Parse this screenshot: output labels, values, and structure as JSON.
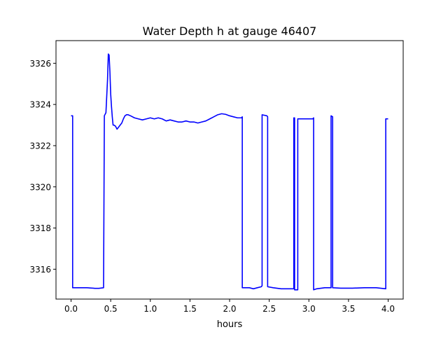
{
  "chart_data": {
    "type": "line",
    "title": "Water Depth h at gauge 46407",
    "xlabel": "hours",
    "ylabel": "",
    "xlim": [
      -0.19,
      4.19
    ],
    "ylim": [
      3314.55,
      3327.1
    ],
    "grid": false,
    "x_ticks": [
      0.0,
      0.5,
      1.0,
      1.5,
      2.0,
      2.5,
      3.0,
      3.5,
      4.0
    ],
    "x_tick_labels": [
      "0.0",
      "0.5",
      "1.0",
      "1.5",
      "2.0",
      "2.5",
      "3.0",
      "3.5",
      "4.0"
    ],
    "y_ticks": [
      3316,
      3318,
      3320,
      3322,
      3324,
      3326
    ],
    "y_tick_labels": [
      "3316",
      "3318",
      "3320",
      "3322",
      "3324",
      "3326"
    ],
    "series": [
      {
        "color": "#0000ff",
        "x": [
          0.0,
          0.02,
          0.02,
          0.1,
          0.2,
          0.28,
          0.3,
          0.35,
          0.41,
          0.42,
          0.42,
          0.44,
          0.46,
          0.47,
          0.48,
          0.49,
          0.5,
          0.51,
          0.52,
          0.53,
          0.54,
          0.56,
          0.58,
          0.6,
          0.62,
          0.64,
          0.66,
          0.68,
          0.7,
          0.72,
          0.75,
          0.8,
          0.85,
          0.9,
          0.95,
          1.0,
          1.05,
          1.1,
          1.15,
          1.2,
          1.25,
          1.3,
          1.35,
          1.4,
          1.45,
          1.5,
          1.55,
          1.6,
          1.65,
          1.7,
          1.75,
          1.8,
          1.85,
          1.9,
          1.95,
          2.0,
          2.05,
          2.1,
          2.15,
          2.16,
          2.16,
          2.2,
          2.25,
          2.3,
          2.35,
          2.4,
          2.41,
          2.41,
          2.47,
          2.48,
          2.48,
          2.55,
          2.65,
          2.75,
          2.8,
          2.81,
          2.81,
          2.82,
          2.82,
          2.85,
          2.86,
          2.86,
          2.95,
          3.05,
          3.06,
          3.06,
          3.1,
          3.2,
          3.28,
          3.28,
          3.3,
          3.3,
          3.4,
          3.55,
          3.7,
          3.85,
          3.97,
          3.97,
          4.0
        ],
        "y": [
          3323.45,
          3323.45,
          3315.1,
          3315.1,
          3315.1,
          3315.08,
          3315.07,
          3315.07,
          3315.1,
          3323.45,
          3323.45,
          3323.6,
          3325.2,
          3326.45,
          3326.4,
          3325.6,
          3324.5,
          3323.9,
          3323.4,
          3323.0,
          3323.0,
          3322.95,
          3322.8,
          3322.9,
          3323.0,
          3323.1,
          3323.3,
          3323.45,
          3323.5,
          3323.5,
          3323.45,
          3323.35,
          3323.3,
          3323.25,
          3323.3,
          3323.35,
          3323.3,
          3323.35,
          3323.3,
          3323.2,
          3323.25,
          3323.2,
          3323.15,
          3323.15,
          3323.2,
          3323.15,
          3323.15,
          3323.1,
          3323.15,
          3323.2,
          3323.3,
          3323.4,
          3323.5,
          3323.55,
          3323.52,
          3323.45,
          3323.4,
          3323.35,
          3323.35,
          3323.4,
          3315.1,
          3315.1,
          3315.1,
          3315.05,
          3315.1,
          3315.15,
          3315.2,
          3323.5,
          3323.45,
          3323.4,
          3315.15,
          3315.1,
          3315.05,
          3315.05,
          3315.05,
          3315.05,
          3323.35,
          3323.35,
          3315.0,
          3315.0,
          3315.0,
          3323.3,
          3323.3,
          3323.3,
          3323.35,
          3315.0,
          3315.05,
          3315.1,
          3315.1,
          3323.45,
          3323.4,
          3315.1,
          3315.08,
          3315.08,
          3315.1,
          3315.1,
          3315.05,
          3323.3,
          3323.3
        ]
      }
    ]
  }
}
